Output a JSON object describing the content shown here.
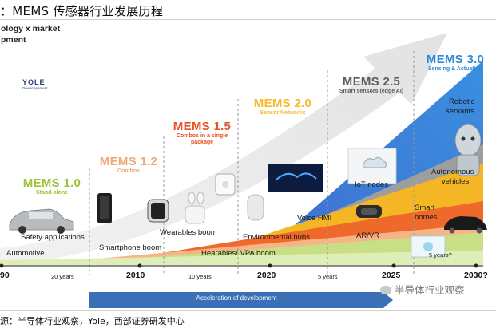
{
  "header": {
    "title": "：MEMS 传感器行业发展历程"
  },
  "diagram": {
    "axis_title_line1": "ology x market",
    "axis_title_line2": "pment",
    "logo": {
      "name": "YOLE",
      "sub": "Développement"
    },
    "stages": [
      {
        "title": "MEMS 1.0",
        "subtitle": "Stand-alone",
        "color": "#9dc233"
      },
      {
        "title": "MEMS 1.2",
        "subtitle": "Combos",
        "color": "#f0a779"
      },
      {
        "title": "MEMS 1.5",
        "subtitle_line1": "Combos in a single",
        "subtitle_line2": "package",
        "color": "#e5531e"
      },
      {
        "title": "MEMS 2.0",
        "subtitle": "Sensor Networks",
        "color": "#f7b928"
      },
      {
        "title": "MEMS 2.5",
        "subtitle": "Smart sensors (edge AI)",
        "color": "#5c5c5c"
      },
      {
        "title": "MEMS 3.0",
        "subtitle": "Sensing & Actuating",
        "color": "#2f8ad6"
      }
    ],
    "labels": {
      "automotive": "Automotive",
      "safety": "Safety applications",
      "smartphone": "Smartphone boom",
      "wearables": "Wearables boom",
      "hearables": "Hearables/ VPA boom",
      "env_hubs": "Environmental hubs",
      "voice_hmi": "Voice HMI",
      "iot": "IoT nodes",
      "arvr": "AR/VR",
      "smart_homes_1": "Smart",
      "smart_homes_2": "homes",
      "autonomous_1": "Autonomous",
      "autonomous_2": "vehicles",
      "robotic_1": "Robotic",
      "robotic_2": "servants"
    },
    "timeline": {
      "ticks": [
        "90",
        "2010",
        "2020",
        "2025",
        "2030?"
      ],
      "gaps": [
        "20 years",
        "10 years",
        "5 years",
        "5 years?"
      ],
      "acceleration": "Acceleration of development"
    },
    "watermark": "半导体行业观察"
  },
  "footer": {
    "source": "源：半导体行业观察，Yole，西部证券研发中心"
  }
}
